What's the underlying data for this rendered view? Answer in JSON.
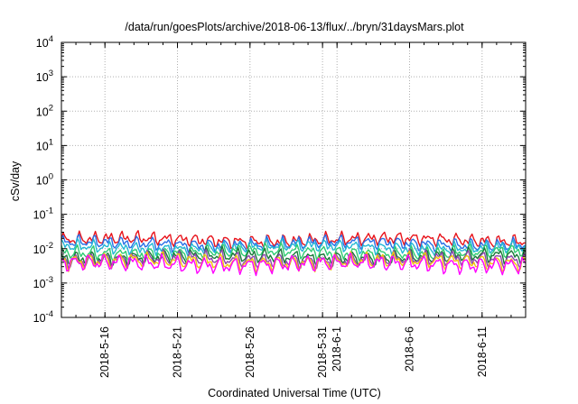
{
  "chart_data": {
    "type": "line",
    "title": "/data/run/goesPlots/archive/2018-06-13/flux/../bryn/31daysMars.plot",
    "xlabel": "Coordinated Universal Time (UTC)",
    "ylabel": "cSv/day",
    "yscale": "log",
    "ylim": [
      0.0001,
      10000
    ],
    "xlim": [
      "2018-05-13",
      "2018-06-14"
    ],
    "grid": true,
    "y_ticks": [
      {
        "value": 0.0001,
        "base": "10",
        "exp": "-4"
      },
      {
        "value": 0.001,
        "base": "10",
        "exp": "-3"
      },
      {
        "value": 0.01,
        "base": "10",
        "exp": "-2"
      },
      {
        "value": 0.1,
        "base": "10",
        "exp": "-1"
      },
      {
        "value": 1,
        "base": "10",
        "exp": "0"
      },
      {
        "value": 10,
        "base": "10",
        "exp": "1"
      },
      {
        "value": 100,
        "base": "10",
        "exp": "2"
      },
      {
        "value": 1000,
        "base": "10",
        "exp": "3"
      },
      {
        "value": 10000,
        "base": "10",
        "exp": "4"
      }
    ],
    "x_ticks": [
      {
        "date": "2018-05-16",
        "label": "2018-5-16"
      },
      {
        "date": "2018-05-21",
        "label": "2018-5-21"
      },
      {
        "date": "2018-05-26",
        "label": "2018-5-26"
      },
      {
        "date": "2018-05-31",
        "label": "2018-5-31"
      },
      {
        "date": "2018-06-01",
        "label": "2018-6-1"
      },
      {
        "date": "2018-06-06",
        "label": "2018-6-6"
      },
      {
        "date": "2018-06-11",
        "label": "2018-6-11"
      }
    ],
    "series": [
      {
        "color": "#e8141c",
        "level": 0.018,
        "amp": 0.11,
        "phase": 0.0
      },
      {
        "color": "#2a6ee6",
        "level": 0.014,
        "amp": 0.11,
        "phase": 0.3
      },
      {
        "color": "#22b8d4",
        "level": 0.011,
        "amp": 0.1,
        "phase": 0.6
      },
      {
        "color": "#2ecc71",
        "level": 0.0078,
        "amp": 0.12,
        "phase": 0.9
      },
      {
        "color": "#1a7a3a",
        "level": 0.0058,
        "amp": 0.13,
        "phase": 1.2
      },
      {
        "color": "#8e44ad",
        "level": 0.0048,
        "amp": 0.14,
        "phase": 1.5
      },
      {
        "color": "#f1c40f",
        "level": 0.0042,
        "amp": 0.15,
        "phase": 1.8
      },
      {
        "color": "#ff00ff",
        "level": 0.0036,
        "amp": 0.16,
        "phase": 2.1
      }
    ]
  }
}
